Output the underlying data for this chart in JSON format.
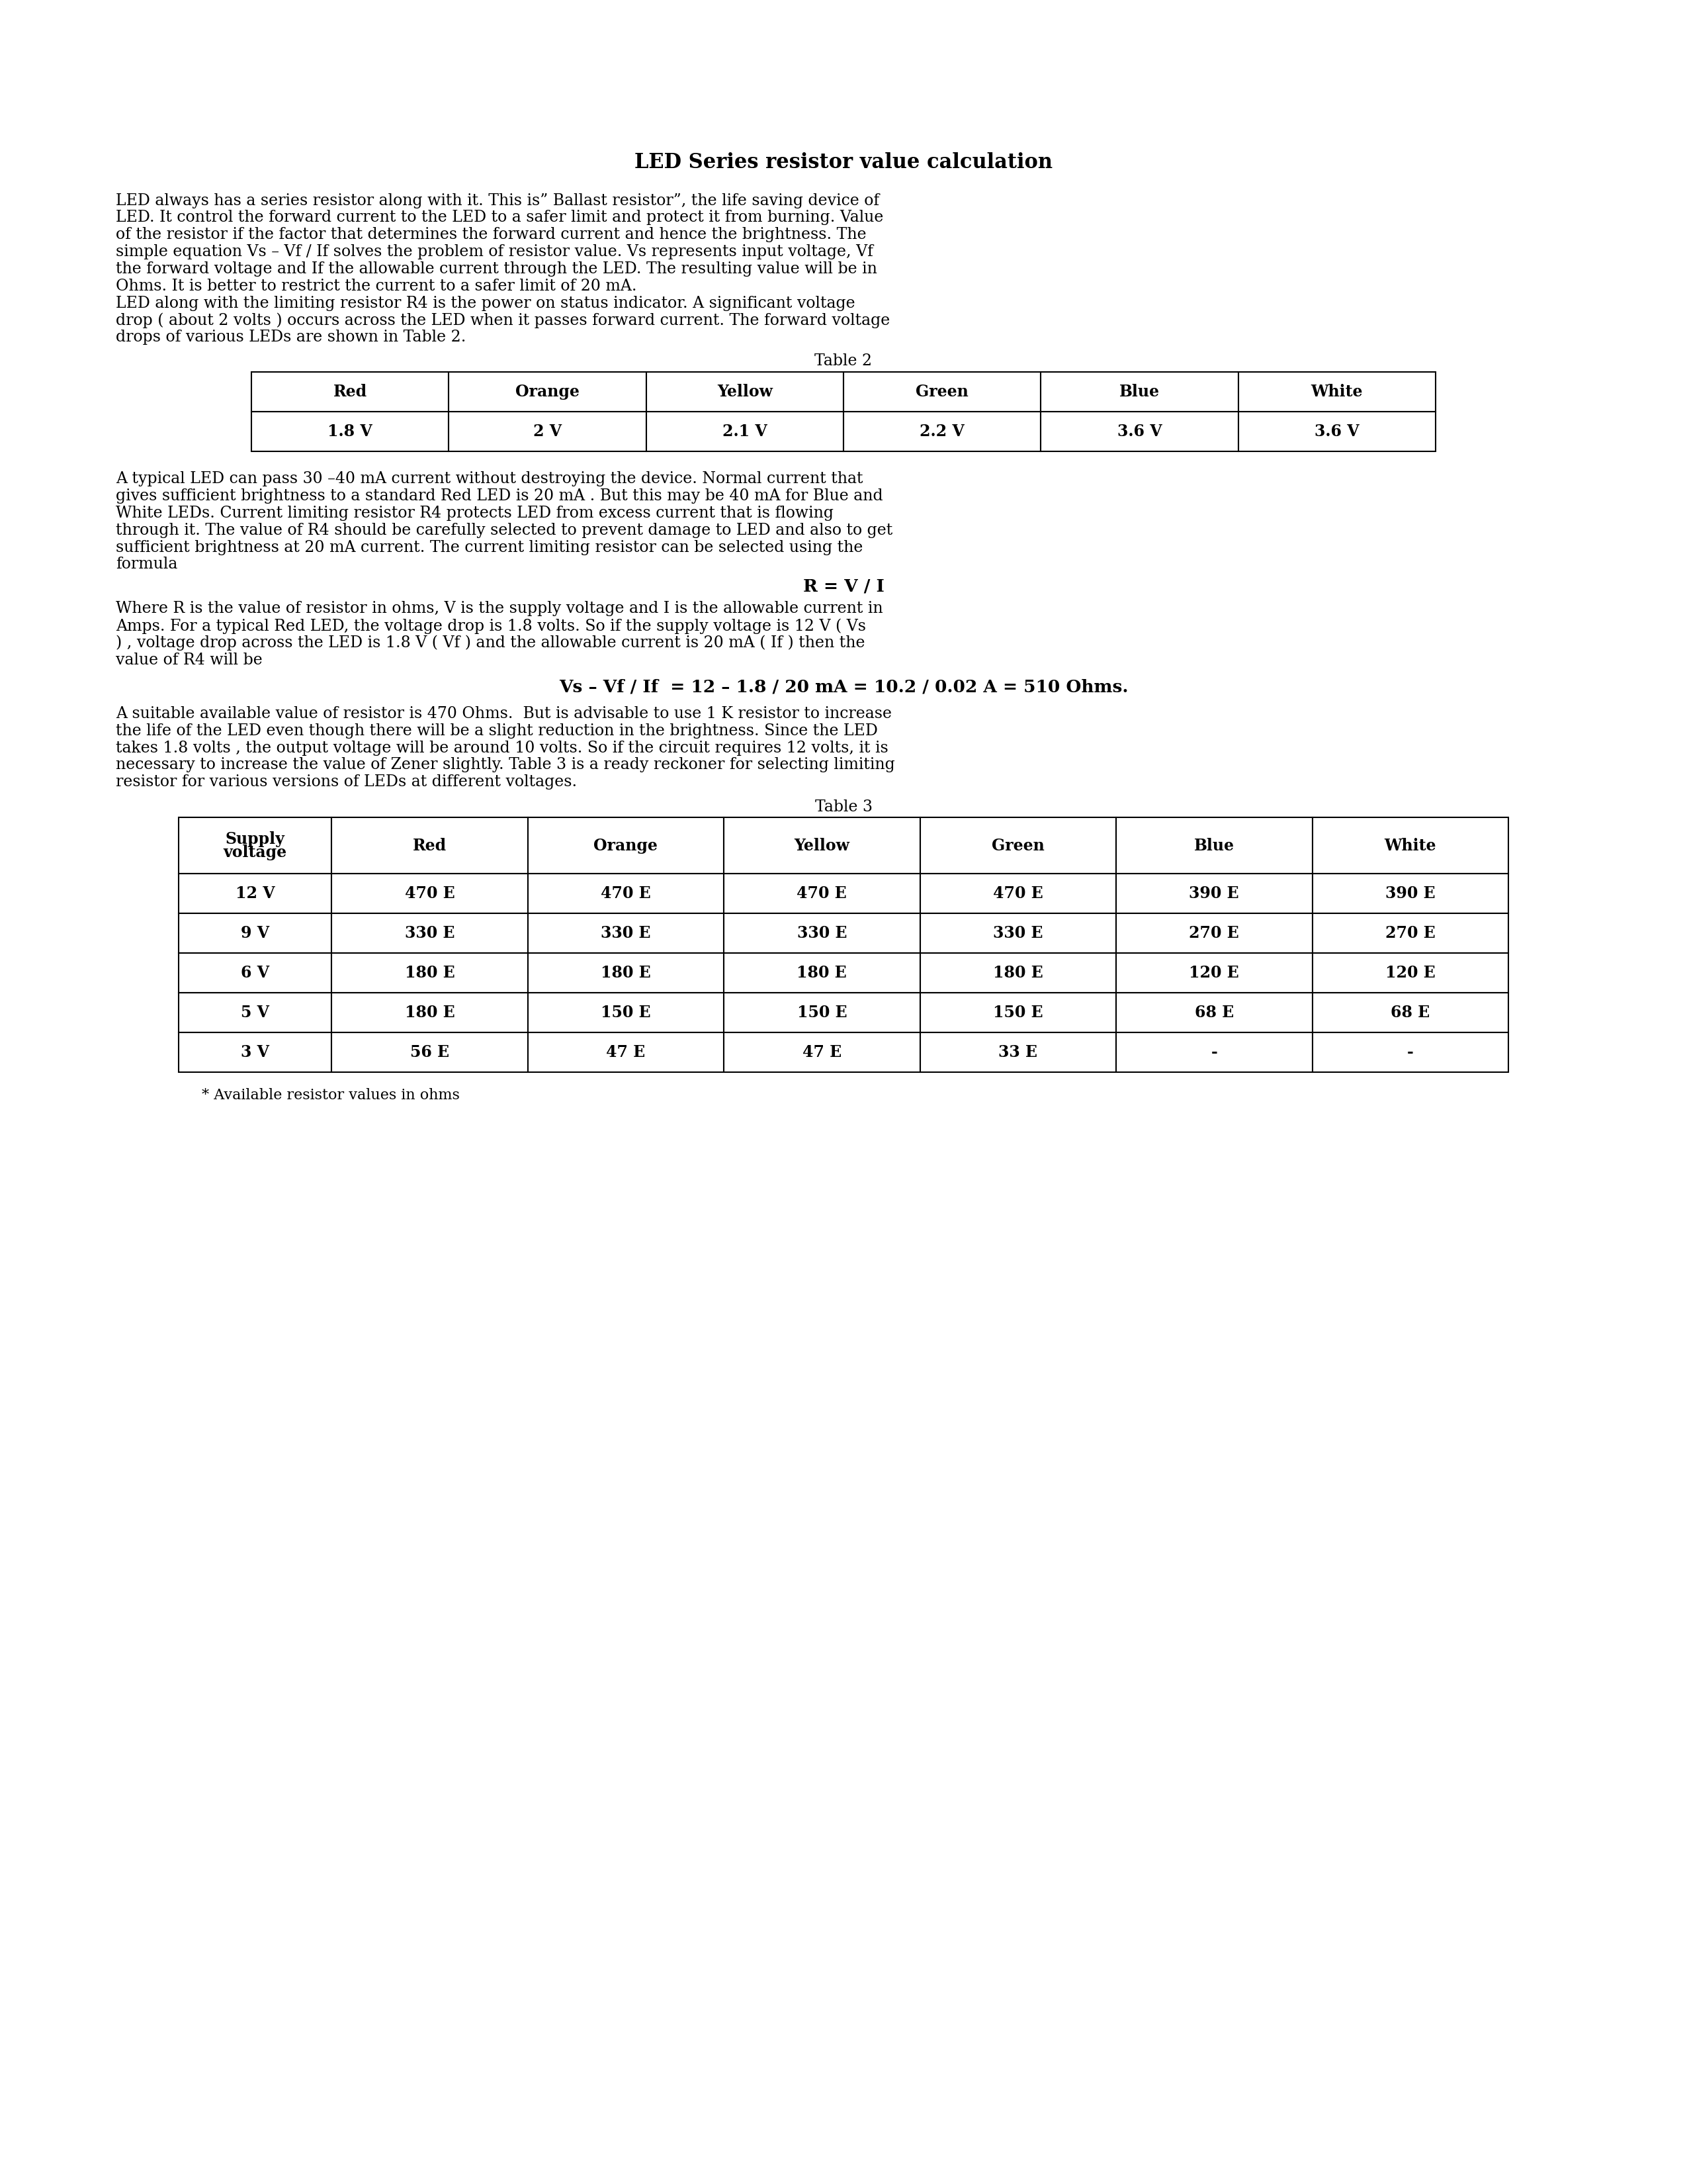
{
  "title": "LED Series resistor value calculation",
  "paragraph1_line1": "LED always has a series resistor along with it. This is” Ballast resistor”, the life saving device of",
  "paragraph1_line2": "LED. It control the forward current to the LED to a safer limit and protect it from burning. Value",
  "paragraph1_line3": "of the resistor if the factor that determines the forward current and hence the brightness. The",
  "paragraph1_line4": "simple equation Vs – Vf / If solves the problem of resistor value. Vs represents input voltage, Vf",
  "paragraph1_line5": "the forward voltage and If the allowable current through the LED. The resulting value will be in",
  "paragraph1_line6": "Ohms. It is better to restrict the current to a safer limit of 20 mA.",
  "paragraph2_line1": "LED along with the limiting resistor R4 is the power on status indicator. A significant voltage",
  "paragraph2_line2": "drop ( about 2 volts ) occurs across the LED when it passes forward current. The forward voltage",
  "paragraph2_line3": "drops of various LEDs are shown in Table 2.",
  "table2_title": "Table 2",
  "table2_headers": [
    "Red",
    "Orange",
    "Yellow",
    "Green",
    "Blue",
    "White"
  ],
  "table2_values": [
    "1.8 V",
    "2 V",
    "2.1 V",
    "2.2 V",
    "3.6 V",
    "3.6 V"
  ],
  "paragraph3_lines": [
    "A typical LED can pass 30 –40 mA current without destroying the device. Normal current that",
    "gives sufficient brightness to a standard Red LED is 20 mA . But this may be 40 mA for Blue and",
    "White LEDs. Current limiting resistor R4 protects LED from excess current that is flowing",
    "through it. The value of R4 should be carefully selected to prevent damage to LED and also to get",
    "sufficient brightness at 20 mA current. The current limiting resistor can be selected using the",
    "formula"
  ],
  "formula1": "R = V / I",
  "paragraph4_lines": [
    "Where R is the value of resistor in ohms, V is the supply voltage and I is the allowable current in",
    "Amps. For a typical Red LED, the voltage drop is 1.8 volts. So if the supply voltage is 12 V ( Vs",
    ") , voltage drop across the LED is 1.8 V ( Vf ) and the allowable current is 20 mA ( If ) then the",
    "value of R4 will be"
  ],
  "formula2": "Vs – Vf / If  = 12 – 1.8 / 20 mA = 10.2 / 0.02 A = 510 Ohms.",
  "paragraph5_lines": [
    "A suitable available value of resistor is 470 Ohms.  But is advisable to use 1 K resistor to increase",
    "the life of the LED even though there will be a slight reduction in the brightness. Since the LED",
    "takes 1.8 volts , the output voltage will be around 10 volts. So if the circuit requires 12 volts, it is",
    "necessary to increase the value of Zener slightly. Table 3 is a ready reckoner for selecting limiting",
    "resistor for various versions of LEDs at different voltages."
  ],
  "table3_title": "Table 3",
  "table3_headers": [
    "Supply\nvoltage",
    "Red",
    "Orange",
    "Yellow",
    "Green",
    "Blue",
    "White"
  ],
  "table3_rows": [
    [
      "12 V",
      "470 E",
      "470 E",
      "470 E",
      "470 E",
      "390 E",
      "390 E"
    ],
    [
      "9 V",
      "330 E",
      "330 E",
      "330 E",
      "330 E",
      "270 E",
      "270 E"
    ],
    [
      "6 V",
      "180 E",
      "180 E",
      "180 E",
      "180 E",
      "120 E",
      "120 E"
    ],
    [
      "5 V",
      "180 E",
      "150 E",
      "150 E",
      "150 E",
      "68 E",
      "68 E"
    ],
    [
      "3 V",
      "56 E",
      "47 E",
      "47 E",
      "33 E",
      "-",
      "-"
    ]
  ],
  "footnote": "* Available resistor values in ohms",
  "bg_color": "#ffffff",
  "fs_title": 22,
  "fs_body": 17,
  "fs_formula": 19,
  "fs_table": 17,
  "fs_footnote": 16
}
